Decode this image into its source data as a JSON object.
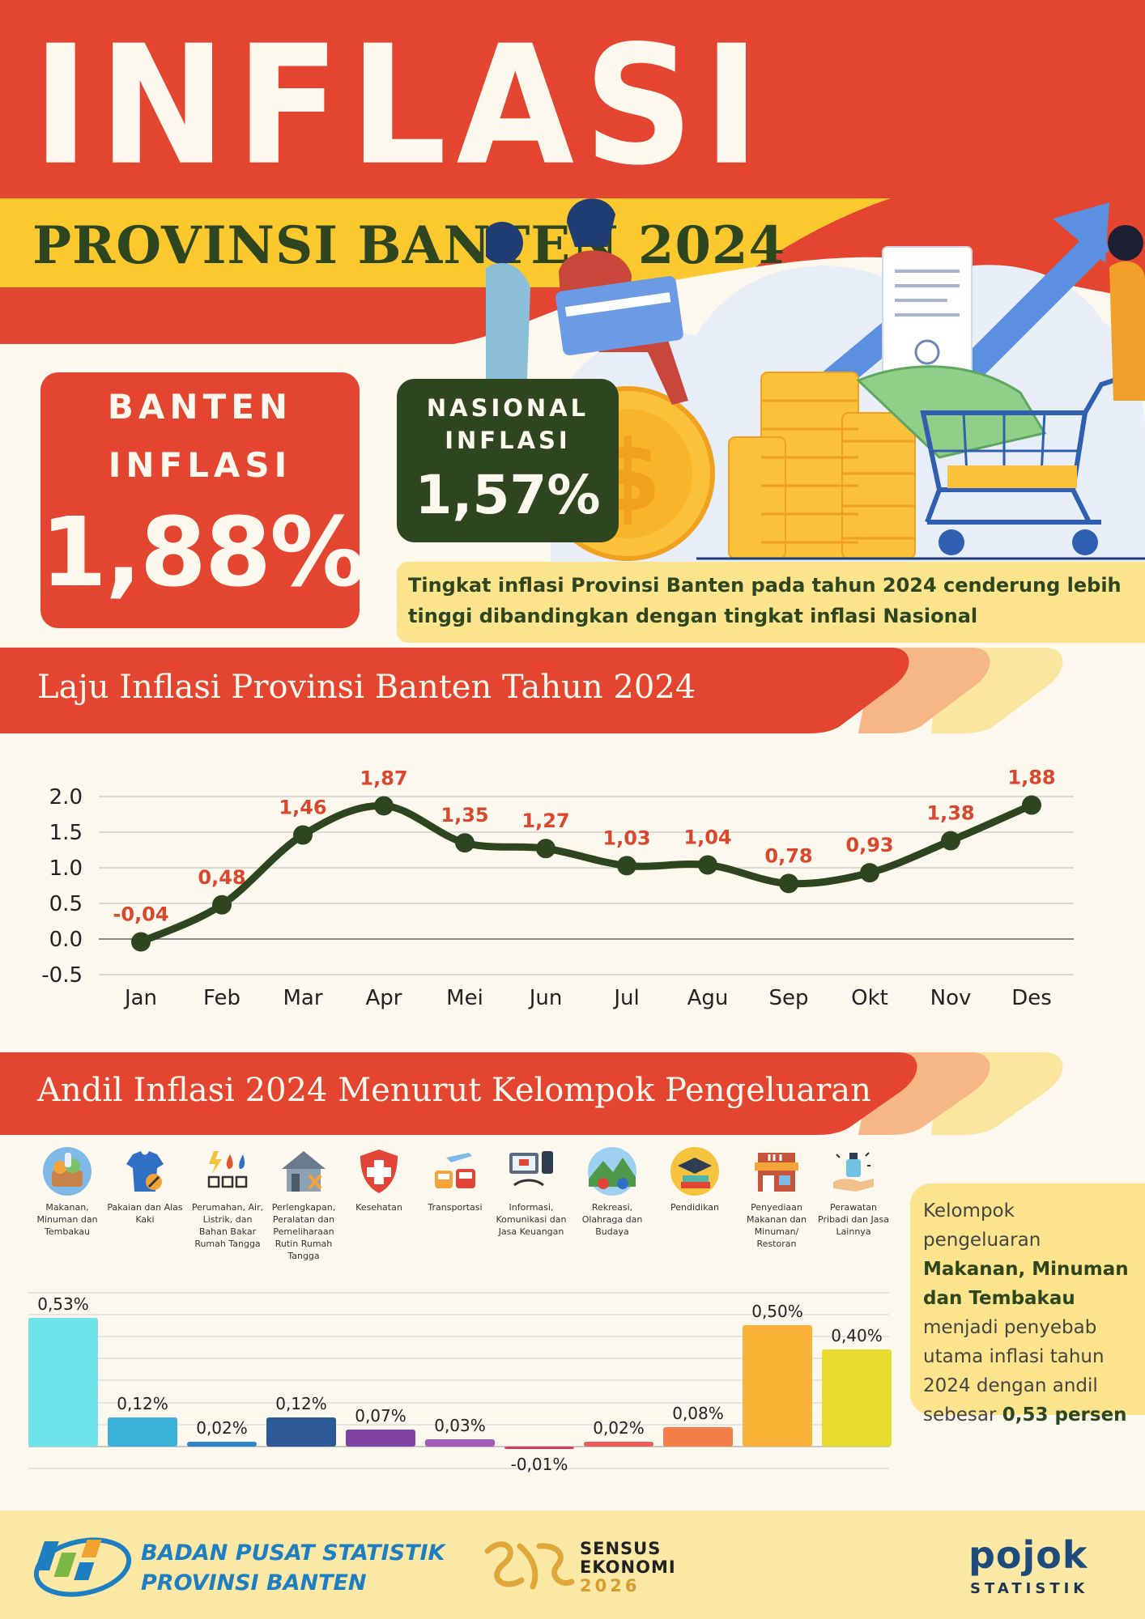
{
  "header": {
    "title": "INFLASI",
    "subtitle": "PROVINSI BANTEN 2024"
  },
  "stats": {
    "banten": {
      "label_line1": "BANTEN",
      "label_line2": "INFLASI",
      "value": "1,88%"
    },
    "nasional": {
      "label_line1": "NASIONAL",
      "label_line2": "INFLASI",
      "value": "1,57%"
    },
    "note": "Tingkat inflasi Provinsi Banten pada tahun 2024 cenderung lebih tinggi dibandingkan dengan tingkat inflasi Nasional"
  },
  "section1": {
    "title": "Laju Inflasi Provinsi Banten Tahun 2024"
  },
  "section2": {
    "title": "Andil Inflasi 2024 Menurut Kelompok Pengeluaran"
  },
  "categories": [
    {
      "label": "Makanan, Minuman dan Tembakau",
      "icon": "food-basket-icon"
    },
    {
      "label": "Pakaian dan Alas Kaki",
      "icon": "shirt-icon"
    },
    {
      "label": "Perumahan, Air, Listrik, dan Bahan Bakar Rumah Tangga",
      "icon": "utilities-icon"
    },
    {
      "label": "Perlengkapan, Peralatan dan Pemeliharaan Rutin Rumah Tangga",
      "icon": "house-tools-icon"
    },
    {
      "label": "Kesehatan",
      "icon": "health-shield-icon"
    },
    {
      "label": "Transportasi",
      "icon": "transport-icon"
    },
    {
      "label": "Informasi, Komunikasi dan Jasa Keuangan",
      "icon": "communication-icon"
    },
    {
      "label": "Rekreasi, Olahraga dan Budaya",
      "icon": "recreation-icon"
    },
    {
      "label": "Pendidikan",
      "icon": "education-icon"
    },
    {
      "label": "Penyediaan Makanan dan Minuman/ Restoran",
      "icon": "restaurant-icon"
    },
    {
      "label": "Perawatan Pribadi dan Jasa Lainnya",
      "icon": "personal-care-icon"
    }
  ],
  "side_note": {
    "before": "Kelompok pengeluaran ",
    "bold1": "Makanan, Minuman dan Tembakau",
    "middle": " menjadi penyebab utama inflasi tahun 2024 dengan andil sebesar ",
    "bold2": "0,53 persen"
  },
  "footer": {
    "bps_line1": "BADAN PUSAT STATISTIK",
    "bps_line2": "PROVINSI BANTEN",
    "se_line1": "SENSUS",
    "se_line2": "EKONOMI",
    "se_year": "2026",
    "pojok": "pojok",
    "pojok_sub": "STATISTIK"
  },
  "colors": {
    "red": "#e44530",
    "dark_green": "#2e4620",
    "yellow": "#fbe48b",
    "cream": "#fdf8ee"
  },
  "chart_data": [
    {
      "type": "line",
      "title": "Laju Inflasi Provinsi Banten Tahun 2024",
      "categories": [
        "Jan",
        "Feb",
        "Mar",
        "Apr",
        "Mei",
        "Jun",
        "Jul",
        "Agu",
        "Sep",
        "Okt",
        "Nov",
        "Des"
      ],
      "values": [
        -0.04,
        0.48,
        1.46,
        1.87,
        1.35,
        1.27,
        1.03,
        1.04,
        0.78,
        0.93,
        1.38,
        1.88
      ],
      "value_labels": [
        "-0,04",
        "0,48",
        "1,46",
        "1,87",
        "1,35",
        "1,27",
        "1,03",
        "1,04",
        "0,78",
        "0,93",
        "1,38",
        "1,88"
      ],
      "yticks": [
        "2.0",
        "1.5",
        "1.0",
        "0.5",
        "0.0",
        "-0.5"
      ],
      "ylim": [
        -0.5,
        2.0
      ],
      "grid": true,
      "line_color": "#2e4620",
      "label_color": "#d9472f"
    },
    {
      "type": "bar",
      "title": "Andil Inflasi 2024 Menurut Kelompok Pengeluaran",
      "categories": [
        "Makanan, Minuman dan Tembakau",
        "Pakaian dan Alas Kaki",
        "Perumahan, Air, Listrik, dan Bahan Bakar Rumah Tangga",
        "Perlengkapan, Peralatan dan Pemeliharaan Rutin Rumah Tangga",
        "Kesehatan",
        "Transportasi",
        "Informasi, Komunikasi dan Jasa Keuangan",
        "Rekreasi, Olahraga dan Budaya",
        "Pendidikan",
        "Penyediaan Makanan dan Minuman/ Restoran",
        "Perawatan Pribadi dan Jasa Lainnya"
      ],
      "values": [
        0.53,
        0.12,
        0.02,
        0.12,
        0.07,
        0.03,
        -0.01,
        0.02,
        0.08,
        0.5,
        0.4
      ],
      "value_labels": [
        "0,53%",
        "0,12%",
        "0,02%",
        "0,12%",
        "0,07%",
        "0,03%",
        "-0,01%",
        "0,02%",
        "0,08%",
        "0,50%",
        "0,40%"
      ],
      "colors": [
        "#6ee3ea",
        "#3ab1d8",
        "#2f86c4",
        "#2b5a96",
        "#7f43a4",
        "#a45ab8",
        "#d23b62",
        "#ea5a5a",
        "#f37e48",
        "#fbb337",
        "#e6dc2e"
      ],
      "grid": true
    }
  ]
}
